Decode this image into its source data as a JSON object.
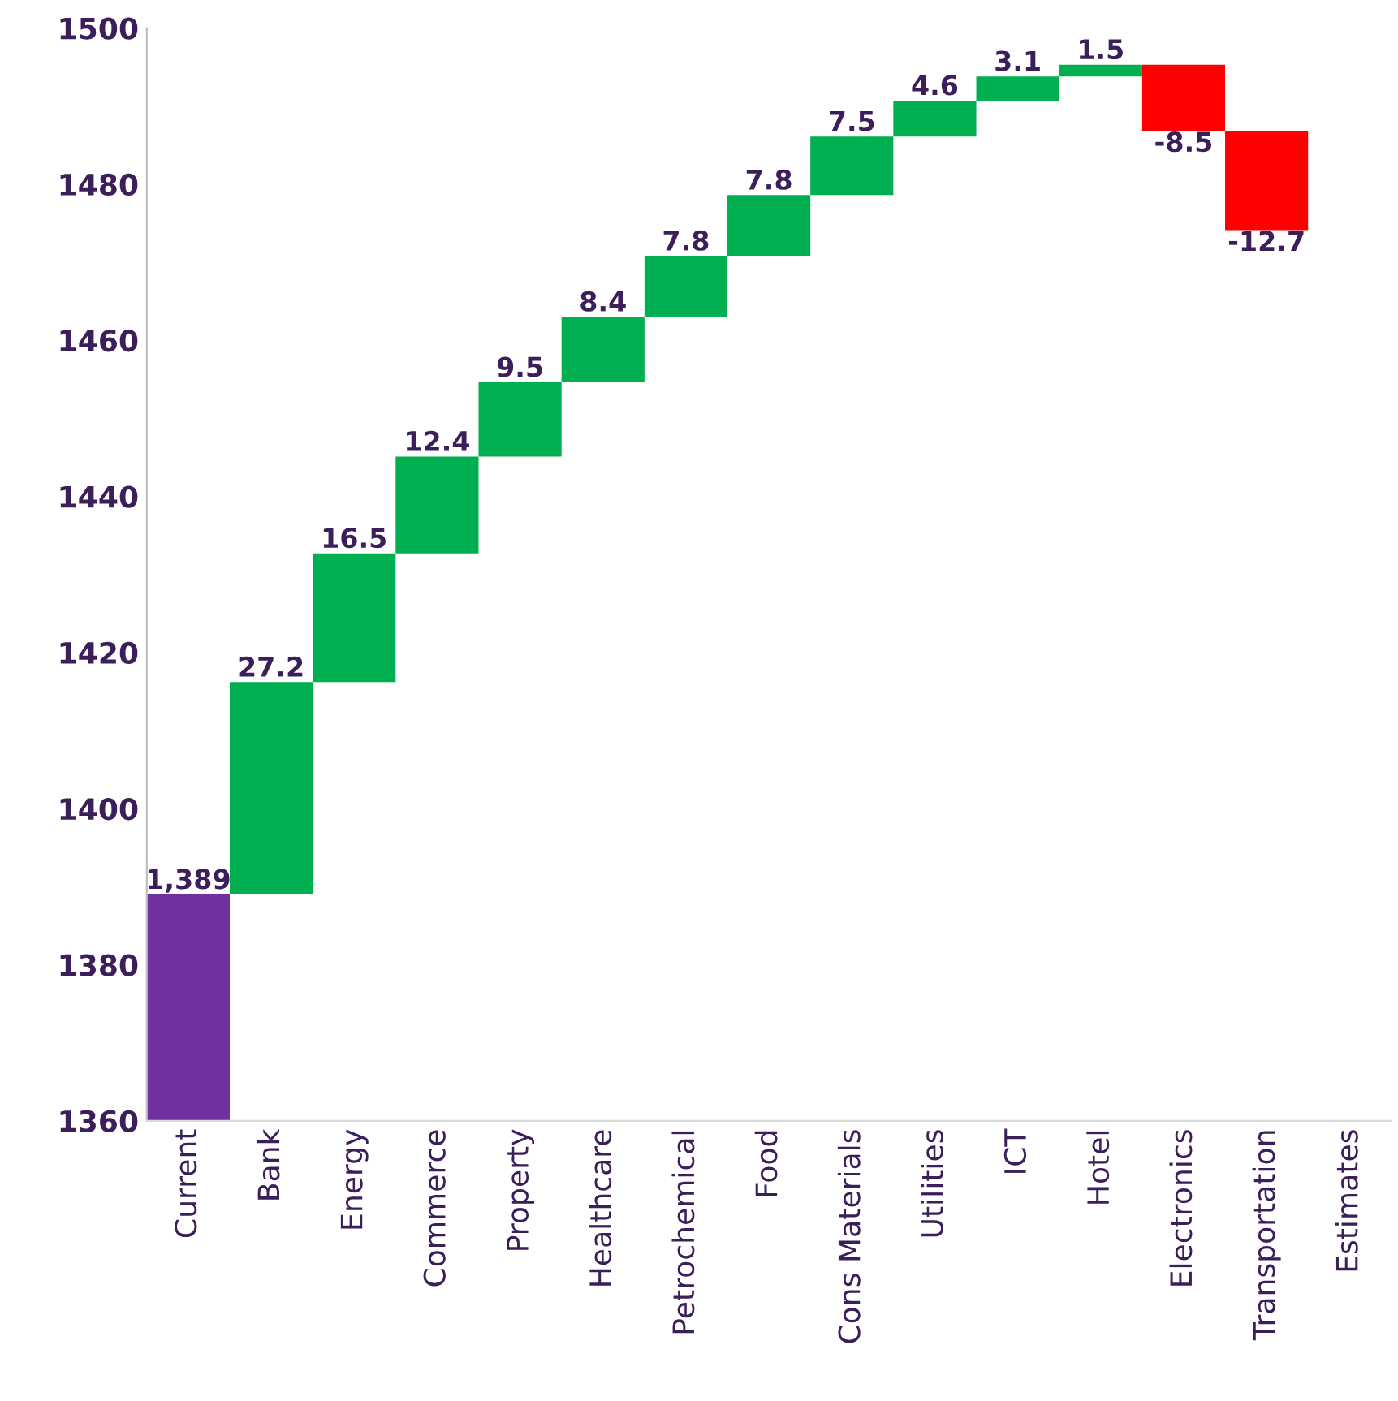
{
  "chart_data": {
    "type": "bar",
    "categories": [
      "Current",
      "Bank",
      "Energy",
      "Commerce",
      "Property",
      "Healthcare",
      "Petrochemical",
      "Food",
      "Cons Materials",
      "Utilities",
      "ICT",
      "Hotel",
      "Electronics",
      "Transportation",
      "Estimates"
    ],
    "values": [
      1389,
      27.2,
      16.5,
      12.4,
      9.5,
      8.4,
      7.8,
      7.8,
      7.5,
      4.6,
      3.1,
      1.5,
      -8.5,
      -12.7,
      null
    ],
    "base": [
      0,
      1389,
      1416.2,
      1432.7,
      1445.1,
      1454.6,
      1463,
      1470.8,
      1478.6,
      1486.1,
      1490.7,
      1493.8,
      1495.3,
      1486.8,
      null
    ],
    "colors": [
      "#7030a0",
      "#00b050",
      "#00b050",
      "#00b050",
      "#00b050",
      "#00b050",
      "#00b050",
      "#00b050",
      "#00b050",
      "#00b050",
      "#00b050",
      "#00b050",
      "#ff0000",
      "#ff0000",
      null
    ],
    "value_labels": [
      "1,389",
      "27.2",
      "16.5",
      "12.4",
      "9.5",
      "8.4",
      "7.8",
      "7.8",
      "7.5",
      "4.6",
      "3.1",
      "1.5",
      "-8.5",
      "-12.7",
      null
    ],
    "ylim": [
      1360,
      1500
    ],
    "yticks": [
      1360,
      1380,
      1400,
      1420,
      1440,
      1460,
      1480,
      1500
    ],
    "grid": false,
    "legend": false
  }
}
